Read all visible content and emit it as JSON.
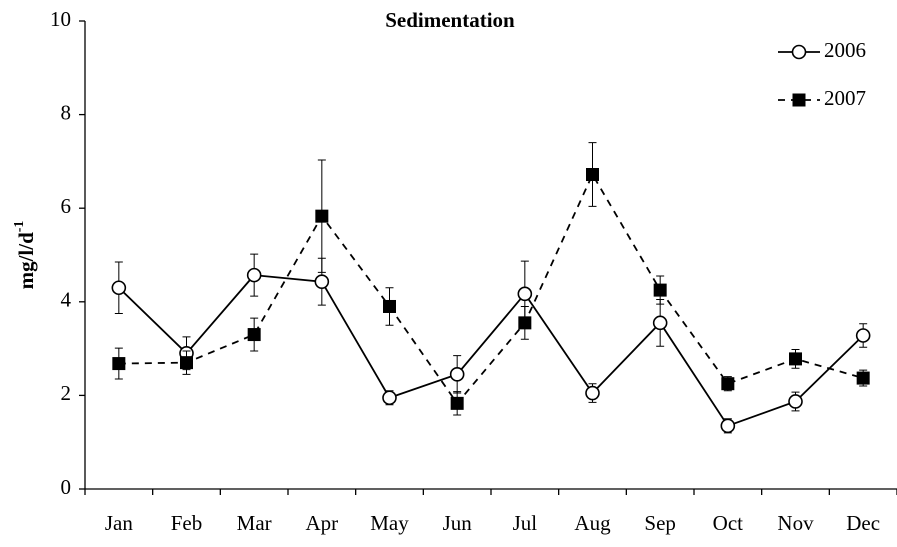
{
  "chart_data": {
    "type": "line",
    "title": "Sedimentation",
    "y_label": "mg/l/d",
    "y_label_superscript": "-1",
    "categories": [
      "Jan",
      "Feb",
      "Mar",
      "Apr",
      "May",
      "Jun",
      "Jul",
      "Aug",
      "Sep",
      "Oct",
      "Nov",
      "Dec"
    ],
    "series": [
      {
        "name": "2006",
        "color": "#000000",
        "dash": false,
        "marker": "circle",
        "values": [
          4.3,
          2.9,
          4.57,
          4.43,
          1.95,
          2.45,
          4.17,
          2.05,
          3.55,
          1.35,
          1.87,
          3.28
        ],
        "errors": [
          0.55,
          0.35,
          0.45,
          0.5,
          0.15,
          0.4,
          0.7,
          0.2,
          0.5,
          0.15,
          0.2,
          0.25
        ]
      },
      {
        "name": "2007",
        "color": "#000000",
        "dash": true,
        "marker": "square",
        "values": [
          2.68,
          2.7,
          3.3,
          5.83,
          3.9,
          1.83,
          3.55,
          6.72,
          4.25,
          2.25,
          2.78,
          2.37
        ],
        "errors": [
          0.33,
          0.25,
          0.35,
          1.2,
          0.4,
          0.25,
          0.35,
          0.68,
          0.3,
          0.15,
          0.2,
          0.17
        ]
      }
    ],
    "ylim": [
      0,
      10
    ],
    "yticks": [
      0,
      2,
      4,
      6,
      8,
      10
    ],
    "grid": false,
    "legend": "top-right"
  }
}
